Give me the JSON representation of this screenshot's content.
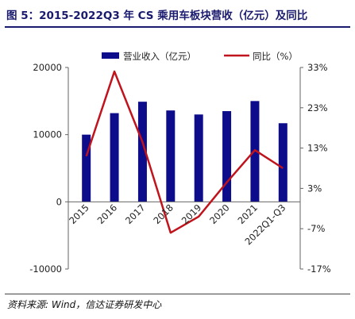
{
  "figure": {
    "title": "图 5：2015-2022Q3 年 CS 乘用车板块营收（亿元）及同比",
    "source": "资料来源: Wind，信达证券研发中心"
  },
  "chart_data": {
    "type": "bar+line",
    "categories": [
      "2015",
      "2016",
      "2017",
      "2018",
      "2019",
      "2020",
      "2021",
      "2022Q1-Q3"
    ],
    "series": [
      {
        "name": "营业收入（亿元）",
        "kind": "bar",
        "axis": "left",
        "color": "#0d0d8c",
        "values": [
          10000,
          13200,
          14900,
          13600,
          13000,
          13500,
          15000,
          11700
        ]
      },
      {
        "name": "同比（%）",
        "kind": "line",
        "axis": "right",
        "color": "#c0131b",
        "values": [
          11,
          32,
          14.5,
          -8,
          -4,
          4.5,
          12.5,
          8
        ]
      }
    ],
    "left_axis": {
      "min": -10000,
      "max": 20000,
      "ticks": [
        -10000,
        0,
        10000,
        20000
      ],
      "tick_labels": [
        "-10000",
        "0",
        "10000",
        "20000"
      ]
    },
    "right_axis": {
      "min": -17,
      "max": 33,
      "ticks": [
        -17,
        -7,
        3,
        13,
        23,
        33
      ],
      "tick_labels": [
        "-17%",
        "-7%",
        "3%",
        "13%",
        "23%",
        "33%"
      ]
    },
    "grid": false,
    "legend_position": "top"
  }
}
